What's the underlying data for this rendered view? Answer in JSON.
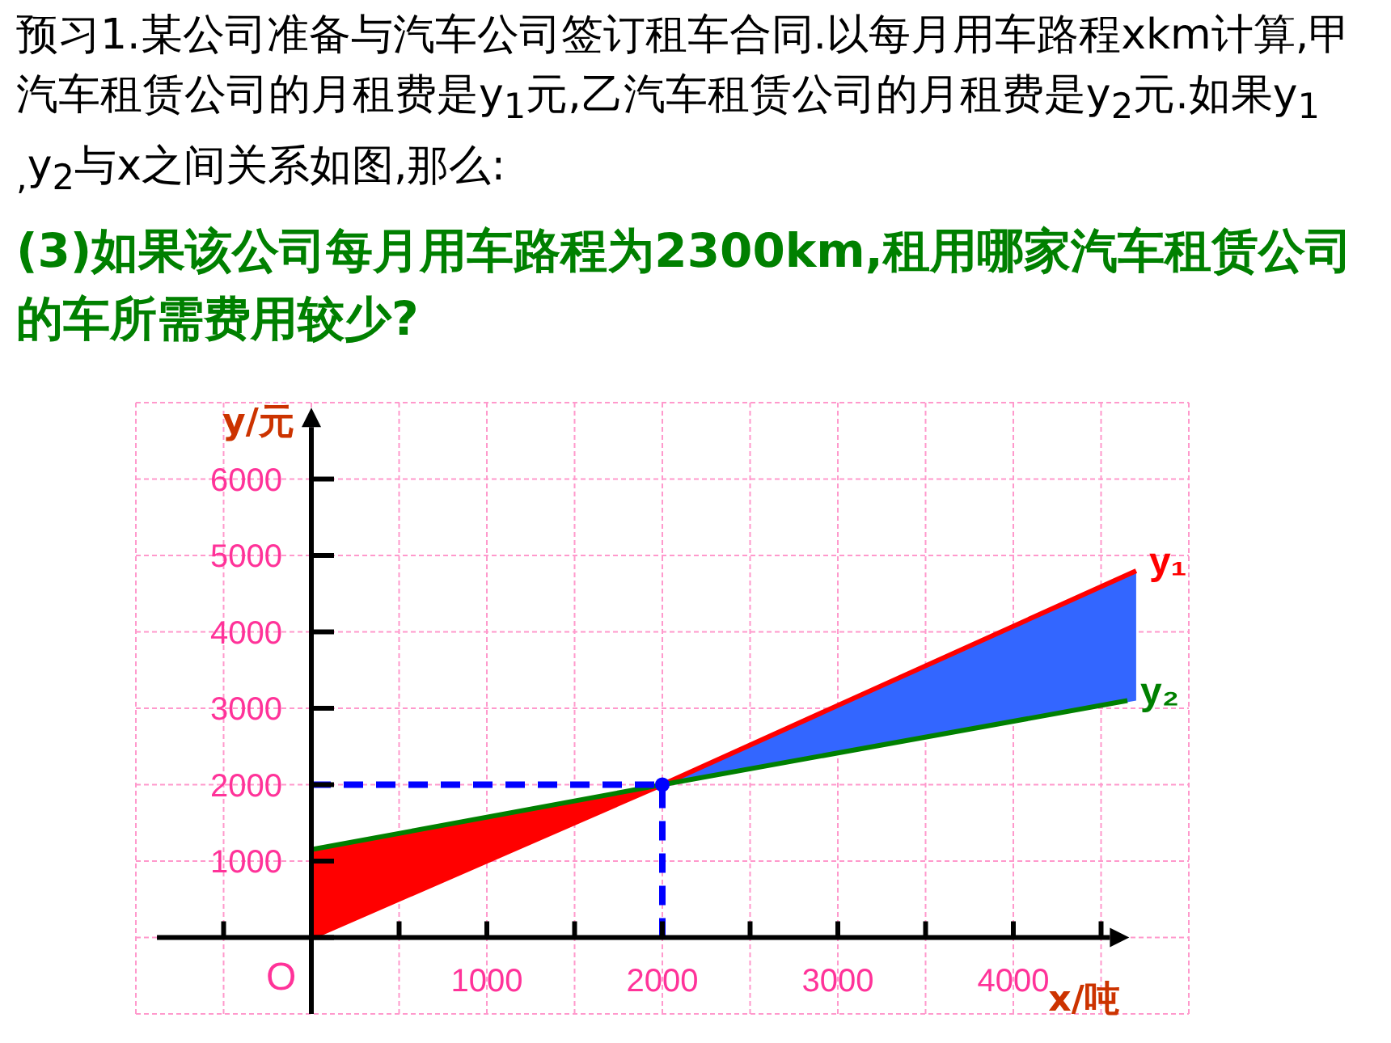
{
  "chart_data": {
    "type": "line",
    "title": "预习1.某公司准备与汽车公司签订租车合同.以每月用车路程xkm计算,甲汽车租赁公司的月租费是y$_{1}$元,乙汽车租赁公司的月租费是y$_{2}$元.如果y$_{1 ,}$y$_{2}$与x之间关系如图,那么:",
    "subtitle": "(3)如果该公司每月用车路程为2300km,租用哪家汽车租赁公司的车所需费用较少?",
    "xlabel": "x/吨",
    "ylabel": "y/元",
    "annotations": [
      "O"
    ],
    "xlim": [
      -1000,
      5000
    ],
    "ylim": [
      -1000,
      7000
    ],
    "xticks": [
      {
        "value": -1000,
        "label": null
      },
      {
        "value": -500,
        "label": null
      },
      {
        "value": 0,
        "label": null
      },
      {
        "value": 500,
        "label": null
      },
      1000,
      {
        "value": 1500,
        "label": null
      },
      2000,
      {
        "value": 2500,
        "label": null
      },
      3000,
      {
        "value": 3500,
        "label": null
      },
      4000,
      {
        "value": 4500,
        "label": null
      },
      {
        "value": 5000,
        "label": null
      }
    ],
    "yticks": [
      {
        "value": -1000,
        "label": null
      },
      {
        "value": 0,
        "label": null
      },
      1000,
      2000,
      3000,
      4000,
      5000,
      6000,
      {
        "value": 7000,
        "label": null
      }
    ],
    "grid": true,
    "series": [
      {
        "name": "y₁",
        "color": "#ff0000",
        "x": [
          0,
          2000,
          4700
        ],
        "values": [
          0,
          2000,
          4800
        ],
        "lower": [
          0,
          2000,
          3100
        ],
        "upper": [
          1150,
          2000,
          4800
        ],
        "colors": [
          "#ff0000",
          "#ff0000",
          "#3366ff"
        ]
      },
      {
        "name": "y₂",
        "color": "#008000",
        "x": [
          0,
          2000,
          4650
        ],
        "values": [
          1150,
          2000,
          3100
        ]
      },
      {
        "color": "#0000ff",
        "line_style": "dashed",
        "x": [
          0,
          2000
        ],
        "values": [
          2000,
          2000
        ]
      },
      {
        "color": "#0000ff",
        "line_style": "dashed",
        "x": [
          2000,
          2000
        ],
        "values": [
          0,
          2000
        ]
      },
      {
        "type": "scatter",
        "color": "#0000ff",
        "marker": "circle",
        "x": [
          2000
        ],
        "values": [
          2000
        ]
      }
    ]
  }
}
